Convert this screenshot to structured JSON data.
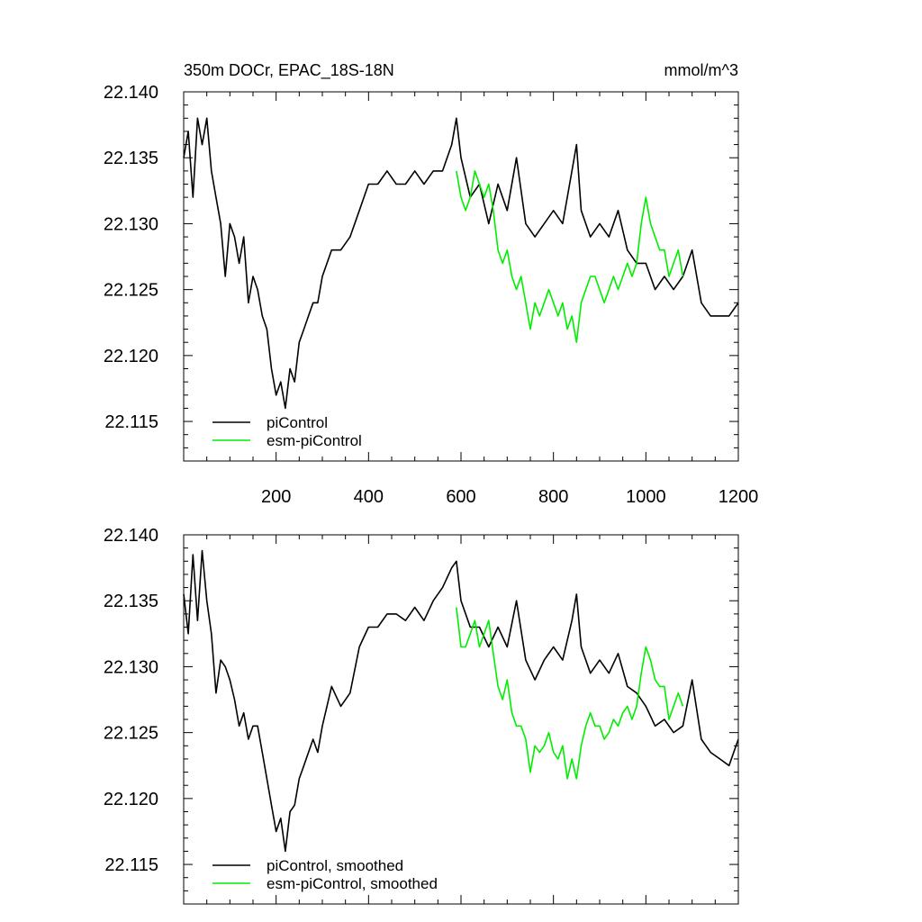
{
  "chart_data": [
    {
      "type": "line",
      "title": "350m DOCr, EPAC_18S-18N",
      "units": "mmol/m^3",
      "xlabel": "",
      "ylabel": "",
      "xlim": [
        0,
        1200
      ],
      "ylim": [
        22.112,
        22.14
      ],
      "x_ticks": [
        200,
        400,
        600,
        800,
        1000,
        1200
      ],
      "x_tick_labels": [
        "200",
        "400",
        "600",
        "800",
        "1000",
        "1200"
      ],
      "y_ticks": [
        22.115,
        22.12,
        22.125,
        22.13,
        22.135,
        22.14
      ],
      "y_tick_labels": [
        "22.115",
        "22.120",
        "22.125",
        "22.130",
        "22.135",
        "22.140"
      ],
      "legend_position": "bottom-left",
      "series": [
        {
          "name": "piControl",
          "color": "#000000",
          "x": [
            0,
            10,
            20,
            30,
            40,
            50,
            60,
            70,
            80,
            90,
            100,
            110,
            120,
            130,
            140,
            150,
            160,
            170,
            180,
            190,
            200,
            210,
            220,
            230,
            240,
            250,
            260,
            270,
            280,
            290,
            300,
            320,
            340,
            360,
            380,
            400,
            420,
            440,
            460,
            480,
            500,
            520,
            540,
            560,
            580,
            590,
            600,
            620,
            640,
            660,
            680,
            700,
            720,
            740,
            760,
            780,
            800,
            820,
            840,
            850,
            860,
            880,
            900,
            920,
            940,
            960,
            980,
            1000,
            1020,
            1040,
            1060,
            1080,
            1100,
            1120,
            1140,
            1160,
            1180,
            1200
          ],
          "values": [
            22.135,
            22.137,
            22.132,
            22.138,
            22.136,
            22.138,
            22.134,
            22.132,
            22.13,
            22.126,
            22.13,
            22.129,
            22.127,
            22.129,
            22.124,
            22.126,
            22.125,
            22.123,
            22.122,
            22.119,
            22.117,
            22.118,
            22.116,
            22.119,
            22.118,
            22.121,
            22.122,
            22.123,
            22.124,
            22.124,
            22.126,
            22.128,
            22.128,
            22.129,
            22.131,
            22.133,
            22.133,
            22.134,
            22.133,
            22.133,
            22.134,
            22.133,
            22.134,
            22.134,
            22.136,
            22.138,
            22.135,
            22.132,
            22.133,
            22.13,
            22.133,
            22.131,
            22.135,
            22.13,
            22.129,
            22.13,
            22.131,
            22.13,
            22.134,
            22.136,
            22.131,
            22.129,
            22.13,
            22.129,
            22.131,
            22.128,
            22.127,
            22.127,
            22.125,
            22.126,
            22.125,
            22.126,
            22.128,
            22.124,
            22.123,
            22.123,
            22.123,
            22.124
          ]
        },
        {
          "name": "esm-piControl",
          "color": "#00ee00",
          "x": [
            590,
            600,
            610,
            620,
            630,
            640,
            650,
            660,
            670,
            680,
            690,
            700,
            710,
            720,
            730,
            740,
            750,
            760,
            770,
            780,
            790,
            800,
            810,
            820,
            830,
            840,
            850,
            860,
            870,
            880,
            890,
            900,
            910,
            920,
            930,
            940,
            950,
            960,
            970,
            980,
            990,
            1000,
            1010,
            1020,
            1030,
            1040,
            1050,
            1060,
            1070,
            1080
          ],
          "values": [
            22.134,
            22.132,
            22.131,
            22.132,
            22.134,
            22.133,
            22.132,
            22.133,
            22.131,
            22.128,
            22.127,
            22.128,
            22.126,
            22.125,
            22.126,
            22.124,
            22.122,
            22.124,
            22.123,
            22.124,
            22.125,
            22.124,
            22.123,
            22.124,
            22.122,
            22.123,
            22.121,
            22.124,
            22.125,
            22.126,
            22.126,
            22.125,
            22.124,
            22.125,
            22.126,
            22.125,
            22.126,
            22.127,
            22.126,
            22.127,
            22.13,
            22.132,
            22.13,
            22.129,
            22.128,
            22.128,
            22.126,
            22.127,
            22.128,
            22.126
          ]
        }
      ]
    },
    {
      "type": "line",
      "title": "",
      "xlabel": "",
      "ylabel": "",
      "xlim": [
        0,
        1200
      ],
      "ylim": [
        22.112,
        22.14
      ],
      "y_ticks": [
        22.115,
        22.12,
        22.125,
        22.13,
        22.135,
        22.14
      ],
      "y_tick_labels": [
        "22.115",
        "22.120",
        "22.125",
        "22.130",
        "22.135",
        "22.140"
      ],
      "legend_position": "bottom-left",
      "series": [
        {
          "name": "piControl, smoothed",
          "color": "#000000",
          "x": [
            0,
            10,
            20,
            30,
            40,
            50,
            60,
            70,
            80,
            90,
            100,
            110,
            120,
            130,
            140,
            150,
            160,
            170,
            180,
            190,
            200,
            210,
            220,
            230,
            240,
            250,
            260,
            270,
            280,
            290,
            300,
            320,
            340,
            360,
            380,
            400,
            420,
            440,
            460,
            480,
            500,
            520,
            540,
            560,
            580,
            590,
            600,
            620,
            640,
            660,
            680,
            700,
            720,
            740,
            760,
            780,
            800,
            820,
            840,
            850,
            860,
            880,
            900,
            920,
            940,
            960,
            980,
            1000,
            1020,
            1040,
            1060,
            1080,
            1100,
            1120,
            1140,
            1160,
            1180,
            1200
          ],
          "values": [
            22.1355,
            22.1325,
            22.1385,
            22.1335,
            22.1388,
            22.135,
            22.1325,
            22.128,
            22.1305,
            22.13,
            22.129,
            22.1275,
            22.1255,
            22.1265,
            22.1245,
            22.1255,
            22.1255,
            22.1235,
            22.1215,
            22.1195,
            22.1175,
            22.1185,
            22.116,
            22.119,
            22.1195,
            22.1215,
            22.1225,
            22.1235,
            22.1245,
            22.1235,
            22.1255,
            22.1285,
            22.127,
            22.128,
            22.1315,
            22.133,
            22.133,
            22.134,
            22.134,
            22.1335,
            22.1345,
            22.1335,
            22.135,
            22.136,
            22.1375,
            22.138,
            22.135,
            22.133,
            22.133,
            22.1315,
            22.133,
            22.1315,
            22.135,
            22.1305,
            22.129,
            22.1305,
            22.1315,
            22.1305,
            22.1335,
            22.1355,
            22.1315,
            22.1295,
            22.1305,
            22.1295,
            22.131,
            22.1285,
            22.128,
            22.127,
            22.1255,
            22.126,
            22.125,
            22.1255,
            22.129,
            22.1245,
            22.1235,
            22.123,
            22.1225,
            22.1245
          ]
        },
        {
          "name": "esm-piControl, smoothed",
          "color": "#00ee00",
          "x": [
            590,
            600,
            610,
            620,
            630,
            640,
            650,
            660,
            670,
            680,
            690,
            700,
            710,
            720,
            730,
            740,
            750,
            760,
            770,
            780,
            790,
            800,
            810,
            820,
            830,
            840,
            850,
            860,
            870,
            880,
            890,
            900,
            910,
            920,
            930,
            940,
            950,
            960,
            970,
            980,
            990,
            1000,
            1010,
            1020,
            1030,
            1040,
            1050,
            1060,
            1070,
            1080
          ],
          "values": [
            22.1345,
            22.1315,
            22.1315,
            22.1325,
            22.1335,
            22.1315,
            22.1325,
            22.1335,
            22.131,
            22.1285,
            22.1275,
            22.129,
            22.1265,
            22.1255,
            22.1255,
            22.1245,
            22.122,
            22.124,
            22.1235,
            22.124,
            22.125,
            22.1235,
            22.123,
            22.124,
            22.1215,
            22.123,
            22.1215,
            22.124,
            22.1255,
            22.1265,
            22.1255,
            22.1255,
            22.1245,
            22.125,
            22.126,
            22.1255,
            22.1265,
            22.127,
            22.126,
            22.127,
            22.1295,
            22.1315,
            22.1305,
            22.129,
            22.1285,
            22.1285,
            22.126,
            22.127,
            22.128,
            22.127
          ]
        }
      ]
    }
  ]
}
